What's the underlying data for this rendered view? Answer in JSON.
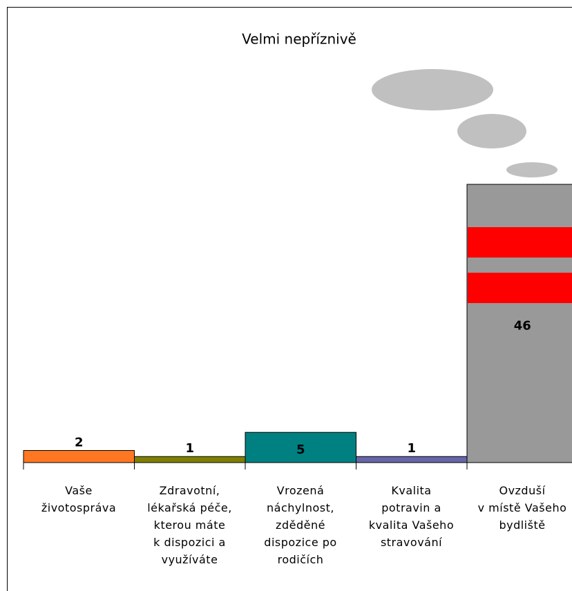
{
  "chart_data": {
    "type": "bar",
    "title": "Velmi nepříznivě",
    "categories": [
      "Vaše\nživotospráva",
      "Zdravotní,\nlékařská péče,\nkterou máte\nk dispozici a\nvyužíváte",
      "Vrozená\nnáchylnost,\nzděděné\ndispozice po\nrodičích",
      "Kvalita\npotravin a\nkvalita Vašeho\nstravování",
      "Ovzduší\nv místě Vašeho\nbydliště"
    ],
    "values": [
      2,
      1,
      5,
      1,
      46
    ],
    "colors": [
      "#ff7722",
      "#808000",
      "#008080",
      "#6666aa",
      "#999999"
    ]
  }
}
